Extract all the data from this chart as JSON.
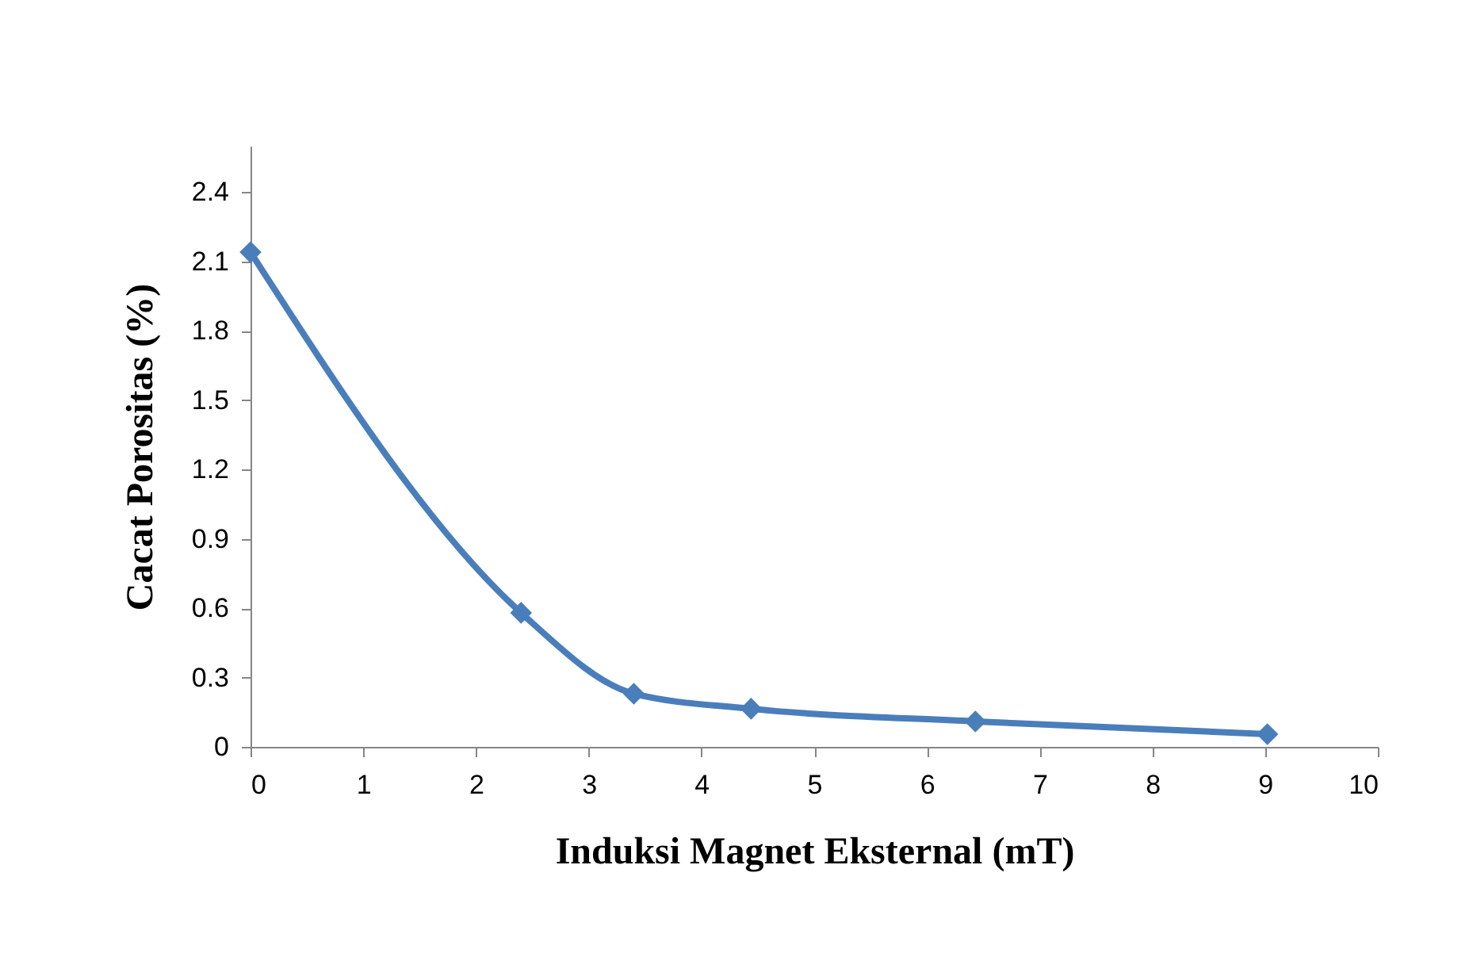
{
  "chart_data": {
    "type": "line",
    "xlabel": "Induksi Magnet Eksternal (mT)",
    "ylabel": "Cacat Porositas (%)",
    "x": [
      0,
      2.4,
      3.4,
      4.44,
      6.43,
      9.02
    ],
    "series": [
      {
        "color": "#4a7ebb",
        "values": [
          2.14,
          0.58,
          0.23,
          0.165,
          0.11,
          0.055
        ]
      }
    ],
    "xlim": [
      0,
      10
    ],
    "xticks": [
      0,
      1,
      2,
      3,
      4,
      5,
      6,
      7,
      8,
      9,
      10
    ],
    "ylim": [
      0,
      2.6
    ],
    "yticks": [
      0,
      0.3,
      0.6,
      0.9,
      1.2,
      1.5,
      1.8,
      2.1,
      2.4
    ],
    "grid": false,
    "marker": "diamond",
    "line_style": "solid"
  }
}
